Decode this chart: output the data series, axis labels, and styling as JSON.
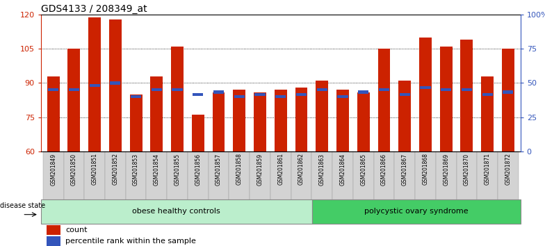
{
  "title": "GDS4133 / 208349_at",
  "samples": [
    "GSM201849",
    "GSM201850",
    "GSM201851",
    "GSM201852",
    "GSM201853",
    "GSM201854",
    "GSM201855",
    "GSM201856",
    "GSM201857",
    "GSM201858",
    "GSM201859",
    "GSM201861",
    "GSM201862",
    "GSM201863",
    "GSM201864",
    "GSM201865",
    "GSM201866",
    "GSM201867",
    "GSM201868",
    "GSM201869",
    "GSM201870",
    "GSM201871",
    "GSM201872"
  ],
  "count_values": [
    93,
    105,
    119,
    118,
    85,
    93,
    106,
    76,
    86,
    87,
    86,
    87,
    88,
    91,
    87,
    86,
    105,
    91,
    110,
    106,
    109,
    93,
    105
  ],
  "percentile_values": [
    87,
    87,
    89,
    90,
    84,
    87,
    87,
    85,
    86,
    84,
    85,
    84,
    85,
    87,
    84,
    86,
    87,
    85,
    88,
    87,
    87,
    85,
    86
  ],
  "ymin": 60,
  "ymax": 120,
  "yticks": [
    60,
    75,
    90,
    105,
    120
  ],
  "right_yticks": [
    0,
    25,
    50,
    75,
    100
  ],
  "right_ylabels": [
    "0",
    "25",
    "50",
    "75",
    "100%"
  ],
  "bar_color": "#cc2200",
  "percentile_color": "#3355bb",
  "group1_label": "obese healthy controls",
  "group2_label": "polycystic ovary syndrome",
  "group1_count": 13,
  "group1_color": "#bbeecc",
  "group2_color": "#44cc66",
  "legend_count_label": "count",
  "legend_pct_label": "percentile rank within the sample",
  "disease_state_label": "disease state",
  "grid_color": "#555555",
  "bg_color": "#ffffff"
}
